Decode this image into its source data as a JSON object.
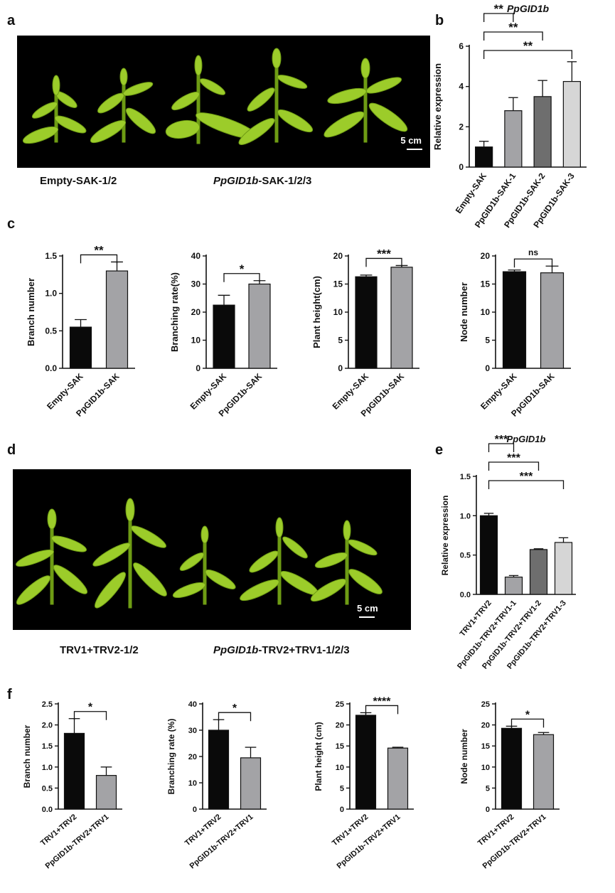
{
  "panels": {
    "a": "a",
    "b": "b",
    "c": "c",
    "d": "d",
    "e": "e",
    "f": "f"
  },
  "photo_a": {
    "scale_bar": "5 cm",
    "caption_left": "Empty-SAK-1/2",
    "caption_right_gene": "PpGID1b",
    "caption_right_rest": "-SAK-1/2/3"
  },
  "photo_d": {
    "scale_bar": "5 cm",
    "caption_left": "TRV1+TRV2-1/2",
    "caption_right_gene": "PpGID1b",
    "caption_right_rest": "-TRV2+TRV1-1/2/3"
  },
  "chart_data": [
    {
      "id": "b",
      "type": "bar",
      "title": "PpGID1b",
      "categories": [
        "Empty-SAK",
        "PpGID1b-SAK-1",
        "PpGID1b-SAK-2",
        "PpGID1b-SAK-3"
      ],
      "values": [
        1.0,
        2.8,
        3.5,
        4.25
      ],
      "errors": [
        0.28,
        0.65,
        0.8,
        0.98
      ],
      "colors": [
        "#0a0a0a",
        "#a3a3a6",
        "#6e6e6e",
        "#d6d6d6"
      ],
      "ylabel": "Relative expression",
      "ylim": [
        0,
        6
      ],
      "yticks": [
        0,
        2,
        4,
        6
      ],
      "significance": [
        {
          "from": 0,
          "to": 1,
          "label": "**"
        },
        {
          "from": 0,
          "to": 2,
          "label": "**"
        },
        {
          "from": 0,
          "to": 3,
          "label": "**"
        }
      ]
    },
    {
      "id": "c1",
      "type": "bar",
      "categories": [
        "Empty-SAK",
        "PpGID1b-SAK"
      ],
      "values": [
        0.55,
        1.3
      ],
      "errors": [
        0.1,
        0.12
      ],
      "colors": [
        "#0a0a0a",
        "#a3a3a6"
      ],
      "ylabel": "Branch number",
      "ylim": [
        0,
        1.5
      ],
      "yticks": [
        "0.0",
        "0.5",
        "1.0",
        "1.5"
      ],
      "significance": [
        {
          "from": 0,
          "to": 1,
          "label": "**"
        }
      ]
    },
    {
      "id": "c2",
      "type": "bar",
      "categories": [
        "Empty-SAK",
        "PpGID1b-SAK"
      ],
      "values": [
        22.5,
        30
      ],
      "errors": [
        3.5,
        1.2
      ],
      "colors": [
        "#0a0a0a",
        "#a3a3a6"
      ],
      "ylabel": "Branching rate(%)",
      "ylim": [
        0,
        40
      ],
      "yticks": [
        0,
        10,
        20,
        30,
        40
      ],
      "significance": [
        {
          "from": 0,
          "to": 1,
          "label": "*"
        }
      ]
    },
    {
      "id": "c3",
      "type": "bar",
      "categories": [
        "Empty-SAK",
        "PpGID1b-SAK"
      ],
      "values": [
        16.3,
        18
      ],
      "errors": [
        0.3,
        0.3
      ],
      "colors": [
        "#0a0a0a",
        "#a3a3a6"
      ],
      "ylabel": "Plant height(cm)",
      "ylim": [
        0,
        20
      ],
      "yticks": [
        0,
        5,
        10,
        15,
        20
      ],
      "significance": [
        {
          "from": 0,
          "to": 1,
          "label": "***"
        }
      ]
    },
    {
      "id": "c4",
      "type": "bar",
      "categories": [
        "Empty-SAK",
        "PpGID1b-SAK"
      ],
      "values": [
        17.2,
        17
      ],
      "errors": [
        0.3,
        1.2
      ],
      "colors": [
        "#0a0a0a",
        "#a3a3a6"
      ],
      "ylabel": "Node number",
      "ylim": [
        0,
        20
      ],
      "yticks": [
        0,
        5,
        10,
        15,
        20
      ],
      "significance": [
        {
          "from": 0,
          "to": 1,
          "label": "ns"
        }
      ]
    },
    {
      "id": "e",
      "type": "bar",
      "title": "PpGID1b",
      "categories": [
        "TRV1+TRV2",
        "PpGID1b-TRV2+TRV1-1",
        "PpGID1b-TRV2+TRV1-2",
        "PpGID1b-TRV2+TRV1-3"
      ],
      "values": [
        1.0,
        0.22,
        0.57,
        0.66
      ],
      "errors": [
        0.03,
        0.02,
        0.01,
        0.06
      ],
      "colors": [
        "#0a0a0a",
        "#a3a3a6",
        "#6e6e6e",
        "#d6d6d6"
      ],
      "ylabel": "Relative expression",
      "ylim": [
        0,
        1.5
      ],
      "yticks": [
        "0.0",
        "0.5",
        "1.0",
        "1.5"
      ],
      "significance": [
        {
          "from": 0,
          "to": 1,
          "label": "***"
        },
        {
          "from": 0,
          "to": 2,
          "label": "***"
        },
        {
          "from": 0,
          "to": 3,
          "label": "***"
        }
      ]
    },
    {
      "id": "f1",
      "type": "bar",
      "categories": [
        "TRV1+TRV2",
        "PpGID1b-TRV2+TRV1"
      ],
      "values": [
        1.8,
        0.8
      ],
      "errors": [
        0.35,
        0.2
      ],
      "colors": [
        "#0a0a0a",
        "#a3a3a6"
      ],
      "ylabel": "Branch number",
      "ylim": [
        0,
        2.5
      ],
      "yticks": [
        "0.0",
        "0.5",
        "1.0",
        "1.5",
        "2.0",
        "2.5"
      ],
      "significance": [
        {
          "from": 0,
          "to": 1,
          "label": "*"
        }
      ]
    },
    {
      "id": "f2",
      "type": "bar",
      "categories": [
        "TRV1+TRV2",
        "PpGID1b-TRV2+TRV1"
      ],
      "values": [
        30,
        19.5
      ],
      "errors": [
        4,
        4
      ],
      "colors": [
        "#0a0a0a",
        "#a3a3a6"
      ],
      "ylabel": "Branching rate (%)",
      "ylim": [
        0,
        40
      ],
      "yticks": [
        0,
        10,
        20,
        30,
        40
      ],
      "significance": [
        {
          "from": 0,
          "to": 1,
          "label": "*"
        }
      ]
    },
    {
      "id": "f3",
      "type": "bar",
      "categories": [
        "TRV1+TRV2",
        "PpGID1b-TRV2+TRV1"
      ],
      "values": [
        22.3,
        14.5
      ],
      "errors": [
        0.6,
        0.2
      ],
      "colors": [
        "#0a0a0a",
        "#a3a3a6"
      ],
      "ylabel": "Plant height (cm)",
      "ylim": [
        0,
        25
      ],
      "yticks": [
        0,
        5,
        10,
        15,
        20,
        25
      ],
      "significance": [
        {
          "from": 0,
          "to": 1,
          "label": "****"
        }
      ]
    },
    {
      "id": "f4",
      "type": "bar",
      "categories": [
        "TRV1+TRV2",
        "PpGID1b-TRV2+TRV1"
      ],
      "values": [
        19.2,
        17.7
      ],
      "errors": [
        0.5,
        0.5
      ],
      "colors": [
        "#0a0a0a",
        "#a3a3a6"
      ],
      "ylabel": "Node number",
      "ylim": [
        0,
        25
      ],
      "yticks": [
        0,
        5,
        10,
        15,
        20,
        25
      ],
      "significance": [
        {
          "from": 0,
          "to": 1,
          "label": "*"
        }
      ]
    }
  ]
}
